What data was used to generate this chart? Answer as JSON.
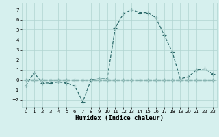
{
  "xlabel": "Humidex (Indice chaleur)",
  "background_color": "#d6f0ee",
  "line_color": "#2d6b6b",
  "xlim": [
    -0.5,
    23.5
  ],
  "ylim": [
    -2.7,
    7.7
  ],
  "xticks": [
    0,
    1,
    2,
    3,
    4,
    5,
    6,
    7,
    8,
    9,
    10,
    11,
    12,
    13,
    14,
    15,
    16,
    17,
    18,
    19,
    20,
    21,
    22,
    23
  ],
  "yticks": [
    -2,
    -1,
    0,
    1,
    2,
    3,
    4,
    5,
    6,
    7
  ],
  "x": [
    0,
    1,
    2,
    3,
    4,
    5,
    6,
    7,
    8,
    9,
    10,
    11,
    12,
    13,
    14,
    15,
    16,
    17,
    18,
    19,
    20,
    21,
    22,
    23
  ],
  "y_main": [
    -0.6,
    0.7,
    -0.3,
    -0.3,
    -0.2,
    -0.3,
    -0.6,
    -2.2,
    0.0,
    0.1,
    0.1,
    5.2,
    6.6,
    7.0,
    6.7,
    6.7,
    6.2,
    4.5,
    2.8,
    0.1,
    0.3,
    1.0,
    1.1,
    0.6
  ],
  "y_flat": [
    0.0,
    0.0,
    0.0,
    0.0,
    0.0,
    0.0,
    0.0,
    0.0,
    0.0,
    0.0,
    0.0,
    0.0,
    0.0,
    0.0,
    0.0,
    0.0,
    0.0,
    0.0,
    0.0,
    0.0,
    0.0,
    0.0,
    0.0,
    0.0
  ],
  "marker": "+",
  "marker_size": 4,
  "line_width": 0.9,
  "grid_color": "#b0d4d0",
  "tick_fontsize": 5,
  "xlabel_fontsize": 6.5
}
